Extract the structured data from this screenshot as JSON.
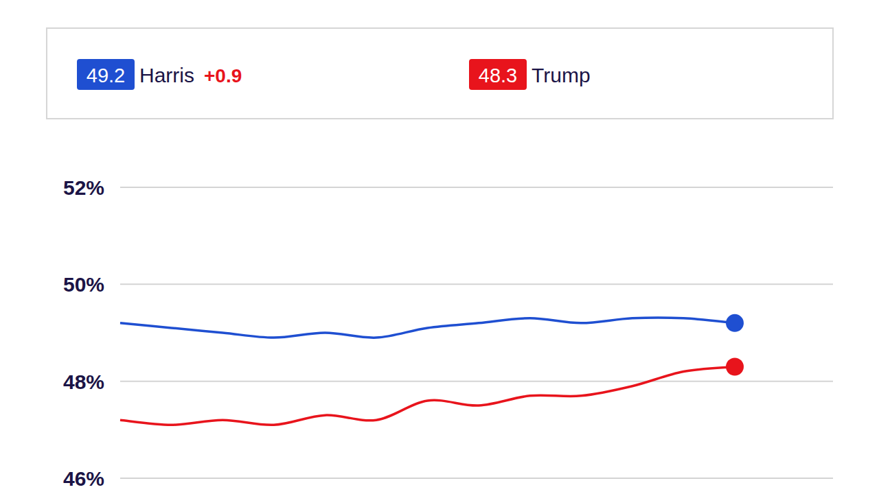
{
  "chart_data": {
    "type": "line",
    "categories": [
      null,
      null,
      null,
      null,
      null,
      null,
      null,
      null,
      null,
      null,
      null,
      null,
      null
    ],
    "series": [
      {
        "name": "Harris",
        "color": "#1f4fd1",
        "values": [
          49.2,
          49.1,
          49.0,
          48.9,
          49.0,
          48.9,
          49.1,
          49.2,
          49.3,
          49.2,
          49.3,
          49.3,
          49.2
        ]
      },
      {
        "name": "Trump",
        "color": "#e8141c",
        "values": [
          47.2,
          47.1,
          47.2,
          47.1,
          47.3,
          47.2,
          47.6,
          47.5,
          47.7,
          47.7,
          47.9,
          48.2,
          48.3
        ]
      }
    ],
    "annotations": [
      "+0.9"
    ],
    "ylim": [
      46,
      52
    ],
    "yticks": [
      {
        "value": 46,
        "label": "46%"
      },
      {
        "value": 48,
        "label": "48%"
      },
      {
        "value": 50,
        "label": "50%"
      },
      {
        "value": 52,
        "label": "52%"
      }
    ],
    "grid": true,
    "legend": "top",
    "tick_labels": "y"
  }
}
